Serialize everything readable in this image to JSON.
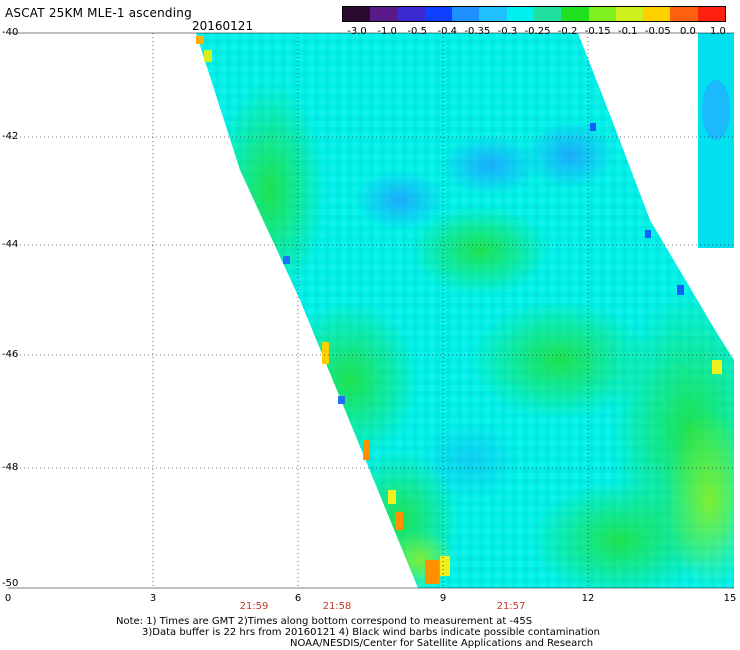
{
  "header": {
    "title": "ASCAT 25KM MLE-1 ascending",
    "date": "20160121"
  },
  "colorbar": {
    "labels": [
      "-3.0",
      "-1.0",
      "-0.5",
      "-0.4",
      "-0.35",
      "-0.3",
      "-0.25",
      "-0.2",
      "-0.15",
      "-0.1",
      "-0.05",
      "0.0",
      "1.0"
    ],
    "colors": [
      "#2a0a2e",
      "#5a1a8a",
      "#3a2ad0",
      "#1040ff",
      "#1e90ff",
      "#20c0ff",
      "#00f0f0",
      "#20e0a0",
      "#20e020",
      "#80f020",
      "#d0f020",
      "#ffd000",
      "#ff6010",
      "#ff2010"
    ]
  },
  "axes": {
    "lat_labels": [
      "-40",
      "-42",
      "-44",
      "-46",
      "-48",
      "-50"
    ],
    "lon_labels": [
      "0",
      "3",
      "6",
      "9",
      "12",
      "15"
    ],
    "time_labels": [
      "21:59",
      "21:58",
      "21:57"
    ]
  },
  "notes": {
    "line1": "Note: 1) Times are GMT 2)Times along bottom correspond to measurement at -45S",
    "line2": "3)Data buffer is 22 hrs from 20160121 4) Black wind barbs indicate possible contamination",
    "line3": "NOAA/NESDIS/Center for Satellite Applications and Research"
  }
}
